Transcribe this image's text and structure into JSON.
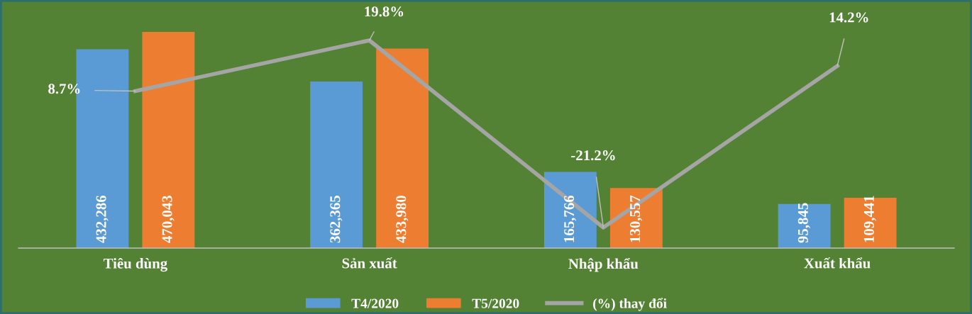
{
  "chart_data": {
    "type": "bar",
    "categories": [
      "Tiêu dùng",
      "Sản xuất",
      "Nhập khẩu",
      "Xuất khẩu"
    ],
    "series": [
      {
        "name": "T4/2020",
        "color": "#5b9bd5",
        "values": [
          432286,
          362365,
          165766,
          95845
        ],
        "value_labels": [
          "432,286",
          "362,365",
          "165,766",
          "95,845"
        ]
      },
      {
        "name": "T5/2020",
        "color": "#ed7d31",
        "values": [
          470043,
          433980,
          130557,
          109441
        ],
        "value_labels": [
          "470,043",
          "433,980",
          "130,557",
          "109,441"
        ]
      },
      {
        "name": "(%) thay đổi",
        "type": "line",
        "axis": "y2",
        "color": "#a5a5a5",
        "values": [
          8.7,
          19.8,
          -21.2,
          14.2
        ],
        "value_labels": [
          "8.7%",
          "19.8%",
          "-21.2%",
          "14.2%"
        ]
      }
    ],
    "legend": "bottom",
    "grid": false,
    "tick_labels": "x",
    "marker": "none",
    "line_style": "solid"
  }
}
